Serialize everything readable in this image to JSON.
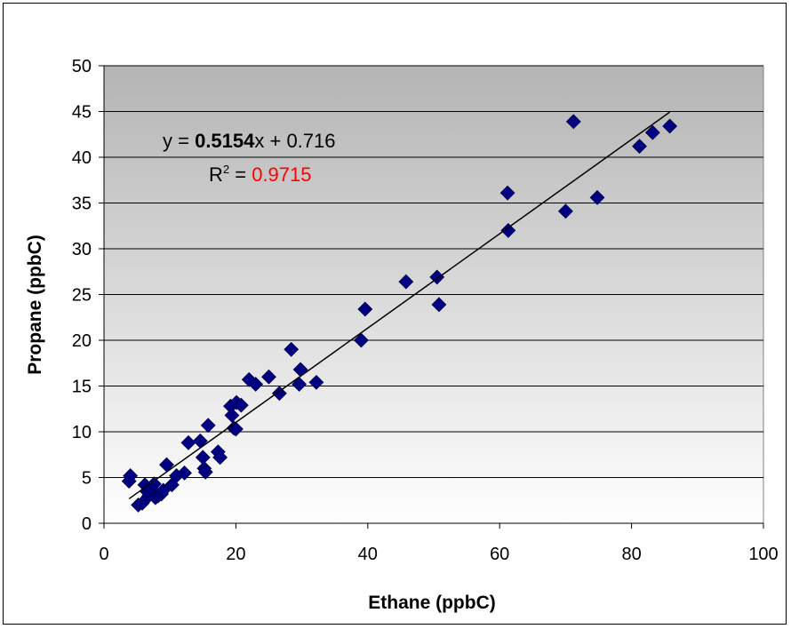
{
  "chart_data": {
    "type": "scatter",
    "title": "",
    "xlabel": "Ethane (ppbC)",
    "ylabel": "Propane (ppbC)",
    "xlim": [
      0,
      100
    ],
    "ylim": [
      0,
      50
    ],
    "x_ticks": [
      "0",
      "20",
      "40",
      "60",
      "80",
      "100"
    ],
    "y_ticks": [
      "0",
      "5",
      "10",
      "15",
      "20",
      "25",
      "30",
      "35",
      "40",
      "45",
      "50"
    ],
    "grid": "horizontal",
    "plot_background": "gradient gray to white",
    "marker": "diamond",
    "marker_color": "#000080",
    "series": [
      {
        "points": [
          [
            3.8,
            4.6
          ],
          [
            4.0,
            5.2
          ],
          [
            5.2,
            2.0
          ],
          [
            5.8,
            2.2
          ],
          [
            6.2,
            4.2
          ],
          [
            6.5,
            3.5
          ],
          [
            6.8,
            3.0
          ],
          [
            7.2,
            3.8
          ],
          [
            7.6,
            4.3
          ],
          [
            7.8,
            2.8
          ],
          [
            8.2,
            3.0
          ],
          [
            8.7,
            3.2
          ],
          [
            9.0,
            3.6
          ],
          [
            9.5,
            6.4
          ],
          [
            10.3,
            4.2
          ],
          [
            11.0,
            5.2
          ],
          [
            12.2,
            5.5
          ],
          [
            12.8,
            8.8
          ],
          [
            14.6,
            9.0
          ],
          [
            15.0,
            7.2
          ],
          [
            15.2,
            6.0
          ],
          [
            15.4,
            5.6
          ],
          [
            15.8,
            10.7
          ],
          [
            17.3,
            7.8
          ],
          [
            17.6,
            7.2
          ],
          [
            19.2,
            12.8
          ],
          [
            19.4,
            11.8
          ],
          [
            19.7,
            10.4
          ],
          [
            20.0,
            10.3
          ],
          [
            20.1,
            13.2
          ],
          [
            20.8,
            12.9
          ],
          [
            22.0,
            15.7
          ],
          [
            23.0,
            15.2
          ],
          [
            25.0,
            16.0
          ],
          [
            26.6,
            14.2
          ],
          [
            28.4,
            19.0
          ],
          [
            29.6,
            15.2
          ],
          [
            29.8,
            16.8
          ],
          [
            32.2,
            15.4
          ],
          [
            39.0,
            20.0
          ],
          [
            39.6,
            23.4
          ],
          [
            45.8,
            26.4
          ],
          [
            50.5,
            26.9
          ],
          [
            50.8,
            23.9
          ],
          [
            61.2,
            36.1
          ],
          [
            61.3,
            32.0
          ],
          [
            70.0,
            34.1
          ],
          [
            71.2,
            43.9
          ],
          [
            74.8,
            35.6
          ],
          [
            81.2,
            41.2
          ],
          [
            83.2,
            42.7
          ],
          [
            85.8,
            43.4
          ]
        ]
      }
    ],
    "trendline": {
      "slope": 0.5154,
      "intercept": 0.716,
      "x_range": [
        3.8,
        85.8
      ],
      "eq_prefix": "y = ",
      "eq_slope": "0.5154",
      "eq_suffix": "x + 0.716",
      "r2_label": "R",
      "r2_sup": "2",
      "r2_equals": " = ",
      "r2_value": "0.9715",
      "r2_value_color": "#ff0000"
    }
  }
}
